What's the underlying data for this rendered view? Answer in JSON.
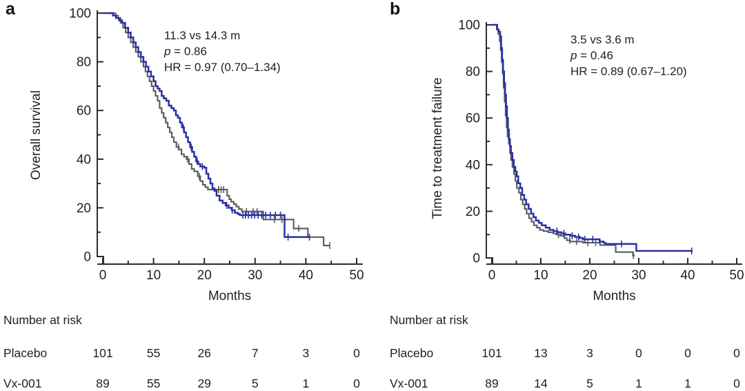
{
  "colors": {
    "axis": "#2b2b2b",
    "text": "#1f1f1f",
    "placebo_gray": "#58595b",
    "vx001_blue": "#2a2fa5"
  },
  "chart_data": [
    {
      "type": "line",
      "subtype": "kaplan-meier-step",
      "panel_letter": "a",
      "title": "",
      "xlabel": "Months",
      "ylabel": "Overall survival",
      "xlim": [
        0,
        50
      ],
      "ylim": [
        0,
        100
      ],
      "xticks": [
        0,
        10,
        20,
        30,
        40,
        50
      ],
      "x_minor_ticks": [
        5,
        15,
        25,
        35,
        45
      ],
      "yticks": [
        0,
        20,
        40,
        60,
        80,
        100
      ],
      "y_minor_ticks": [
        10,
        30,
        50,
        70,
        90
      ],
      "grid": false,
      "legend": "none",
      "annotation": {
        "median_line": "11.3 vs 14.3 m",
        "p_italic": "p",
        "p_rest": " = 0.86",
        "hr_line": "HR = 0.97 (0.70–1.34)"
      },
      "series": [
        {
          "name": "Placebo",
          "color": "#58595b",
          "stroke_width": 2.1,
          "points": [
            [
              0,
              100
            ],
            [
              2,
              100
            ],
            [
              2.5,
              99
            ],
            [
              3,
              98
            ],
            [
              3.5,
              96
            ],
            [
              4,
              94
            ],
            [
              4.5,
              92
            ],
            [
              5,
              90
            ],
            [
              5.5,
              88
            ],
            [
              6,
              86
            ],
            [
              6.5,
              84
            ],
            [
              7,
              82
            ],
            [
              7.5,
              80
            ],
            [
              8,
              78
            ],
            [
              8.4,
              76
            ],
            [
              8.8,
              74
            ],
            [
              9.2,
              72
            ],
            [
              9.6,
              70
            ],
            [
              10,
              68
            ],
            [
              10.4,
              66
            ],
            [
              10.8,
              64
            ],
            [
              11.2,
              61
            ],
            [
              11.6,
              59
            ],
            [
              12,
              57
            ],
            [
              12.4,
              55
            ],
            [
              12.8,
              53
            ],
            [
              13.2,
              51
            ],
            [
              13.6,
              49
            ],
            [
              14,
              47
            ],
            [
              14.5,
              45
            ],
            [
              15,
              44
            ],
            [
              15.5,
              42
            ],
            [
              16,
              41
            ],
            [
              16.5,
              40
            ],
            [
              17,
              38
            ],
            [
              17.5,
              36
            ],
            [
              18,
              35
            ],
            [
              18.7,
              33
            ],
            [
              19.2,
              31
            ],
            [
              19.7,
              29.5
            ],
            [
              20.2,
              28.5
            ],
            [
              20.7,
              27.5
            ],
            [
              24.2,
              27.5
            ],
            [
              24.5,
              25
            ],
            [
              24.9,
              23.5
            ],
            [
              25.3,
              22.5
            ],
            [
              25.8,
              21.5
            ],
            [
              26.3,
              20.5
            ],
            [
              26.8,
              19.5
            ],
            [
              27.4,
              18.5
            ],
            [
              31.3,
              18.5
            ],
            [
              31.6,
              15.2
            ],
            [
              37.3,
              15.2
            ],
            [
              37.6,
              11.5
            ],
            [
              40.1,
              11.5
            ],
            [
              40.4,
              8
            ],
            [
              43.2,
              8
            ],
            [
              43.5,
              4.5
            ],
            [
              44.8,
              4.5
            ]
          ],
          "censor_marks": [
            14.9,
            16.7,
            19,
            22.8,
            23.3,
            23.8,
            28.3,
            29.6,
            30.4,
            33.8,
            35.3,
            38.6,
            44.7
          ]
        },
        {
          "name": "Vx-001",
          "color": "#2a2fa5",
          "stroke_width": 2.5,
          "points": [
            [
              0,
              100
            ],
            [
              1.5,
              100
            ],
            [
              2,
              99
            ],
            [
              2.6,
              98
            ],
            [
              3.2,
              97
            ],
            [
              3.8,
              96
            ],
            [
              4.4,
              94
            ],
            [
              5,
              92
            ],
            [
              5.5,
              90
            ],
            [
              6,
              88
            ],
            [
              6.5,
              86
            ],
            [
              7,
              84
            ],
            [
              7.5,
              82
            ],
            [
              8,
              80
            ],
            [
              8.5,
              78
            ],
            [
              9,
              76
            ],
            [
              9.5,
              74
            ],
            [
              10,
              72
            ],
            [
              10.4,
              70
            ],
            [
              10.8,
              69
            ],
            [
              11.2,
              68
            ],
            [
              11.6,
              66
            ],
            [
              12,
              65
            ],
            [
              12.5,
              64
            ],
            [
              13,
              62
            ],
            [
              13.5,
              61
            ],
            [
              14,
              60
            ],
            [
              14.4,
              58
            ],
            [
              14.8,
              57
            ],
            [
              15.2,
              55
            ],
            [
              15.6,
              53
            ],
            [
              16,
              51
            ],
            [
              16.4,
              49
            ],
            [
              16.8,
              47
            ],
            [
              17.2,
              45
            ],
            [
              17.6,
              43
            ],
            [
              18,
              41
            ],
            [
              18.4,
              39
            ],
            [
              18.8,
              38
            ],
            [
              19.2,
              37
            ],
            [
              20,
              36.5
            ],
            [
              20.4,
              34
            ],
            [
              20.8,
              32
            ],
            [
              21.2,
              30
            ],
            [
              21.6,
              28
            ],
            [
              22,
              27
            ],
            [
              22.4,
              25
            ],
            [
              23,
              23
            ],
            [
              23.6,
              22
            ],
            [
              24.2,
              21
            ],
            [
              24.8,
              20
            ],
            [
              25.4,
              19
            ],
            [
              26,
              18
            ],
            [
              26.6,
              17.5
            ],
            [
              27,
              17
            ],
            [
              35.6,
              17
            ],
            [
              35.8,
              8
            ],
            [
              40.8,
              8
            ]
          ],
          "censor_marks": [
            15.9,
            17.4,
            18.6,
            19.6,
            24.4,
            25.5,
            27.6,
            28.1,
            28.7,
            29.3,
            29.9,
            30.6,
            31.3,
            32.1,
            33,
            34,
            35,
            36.5,
            40.7
          ]
        }
      ],
      "number_at_risk": {
        "title": "Number at risk",
        "time_points": [
          0,
          10,
          20,
          30,
          40,
          50
        ],
        "rows": [
          {
            "label": "Placebo",
            "values": [
              101,
              55,
              26,
              7,
              3,
              0
            ]
          },
          {
            "label": "Vx-001",
            "values": [
              89,
              55,
              29,
              5,
              1,
              0
            ]
          }
        ]
      }
    },
    {
      "type": "line",
      "subtype": "kaplan-meier-step",
      "panel_letter": "b",
      "title": "",
      "xlabel": "Months",
      "ylabel": "Time to treatment failure",
      "xlim": [
        0,
        50
      ],
      "ylim": [
        0,
        100
      ],
      "xticks": [
        0,
        10,
        20,
        30,
        40,
        50
      ],
      "x_minor_ticks": [
        5,
        15,
        25,
        35,
        45
      ],
      "yticks": [
        0,
        20,
        40,
        60,
        80,
        100
      ],
      "y_minor_ticks": [
        10,
        30,
        50,
        70,
        90
      ],
      "grid": false,
      "legend": "none",
      "annotation": {
        "median_line": "3.5 vs 3.6 m",
        "p_italic": "p",
        "p_rest": " = 0.46",
        "hr_line": "HR = 0.89 (0.67–1.20)"
      },
      "series": [
        {
          "name": "Placebo",
          "color": "#58595b",
          "stroke_width": 2.1,
          "points": [
            [
              0,
              100
            ],
            [
              0.8,
              100
            ],
            [
              1,
              98
            ],
            [
              1.3,
              96
            ],
            [
              1.6,
              93
            ],
            [
              1.8,
              89
            ],
            [
              2,
              84
            ],
            [
              2.2,
              79
            ],
            [
              2.4,
              73
            ],
            [
              2.6,
              67
            ],
            [
              2.8,
              61
            ],
            [
              3,
              56
            ],
            [
              3.2,
              52
            ],
            [
              3.45,
              49
            ],
            [
              3.7,
              45
            ],
            [
              3.9,
              42
            ],
            [
              4.2,
              39
            ],
            [
              4.5,
              36
            ],
            [
              4.8,
              33
            ],
            [
              5.1,
              30
            ],
            [
              5.5,
              28
            ],
            [
              5.9,
              25
            ],
            [
              6.3,
              23
            ],
            [
              6.7,
              21
            ],
            [
              7.1,
              19
            ],
            [
              7.6,
              17
            ],
            [
              8.1,
              15.5
            ],
            [
              8.6,
              14
            ],
            [
              9.2,
              13
            ],
            [
              9.8,
              12
            ],
            [
              10.5,
              11.5
            ],
            [
              11.5,
              11
            ],
            [
              12.5,
              10.5
            ],
            [
              13.2,
              10
            ],
            [
              14,
              9.5
            ],
            [
              14.8,
              8.5
            ],
            [
              15.3,
              7.5
            ],
            [
              16,
              7
            ],
            [
              18.3,
              7
            ],
            [
              18.6,
              6.5
            ],
            [
              21.8,
              6.5
            ],
            [
              22.1,
              5.5
            ],
            [
              25,
              5.5
            ],
            [
              25.3,
              2.5
            ],
            [
              28.6,
              2.5
            ],
            [
              28.8,
              1
            ],
            [
              29.2,
              1
            ]
          ],
          "censor_marks": [
            13.6,
            15.9,
            17.3,
            19.6,
            21.2,
            28.9
          ]
        },
        {
          "name": "Vx-001",
          "color": "#2a2fa5",
          "stroke_width": 2.5,
          "points": [
            [
              0,
              100
            ],
            [
              0.9,
              100
            ],
            [
              1.1,
              98
            ],
            [
              1.4,
              97
            ],
            [
              1.7,
              95
            ],
            [
              1.9,
              90
            ],
            [
              2.1,
              85
            ],
            [
              2.3,
              80
            ],
            [
              2.5,
              75
            ],
            [
              2.7,
              70
            ],
            [
              2.9,
              65
            ],
            [
              3.1,
              60
            ],
            [
              3.3,
              55
            ],
            [
              3.5,
              51
            ],
            [
              3.7,
              48
            ],
            [
              3.9,
              45
            ],
            [
              4.2,
              42
            ],
            [
              4.5,
              39
            ],
            [
              4.8,
              37
            ],
            [
              5.1,
              35
            ],
            [
              5.4,
              32
            ],
            [
              5.8,
              30
            ],
            [
              6.2,
              27
            ],
            [
              6.6,
              25
            ],
            [
              7,
              23
            ],
            [
              7.5,
              21
            ],
            [
              8,
              19
            ],
            [
              8.5,
              17.5
            ],
            [
              9,
              16
            ],
            [
              9.6,
              15
            ],
            [
              10.2,
              14
            ],
            [
              11,
              13
            ],
            [
              11.8,
              12
            ],
            [
              12.6,
              11.5
            ],
            [
              13.4,
              11
            ],
            [
              14.2,
              10.5
            ],
            [
              15,
              10
            ],
            [
              16,
              9.5
            ],
            [
              17,
              9
            ],
            [
              18,
              8.5
            ],
            [
              18.6,
              8
            ],
            [
              21.5,
              8
            ],
            [
              22,
              7
            ],
            [
              22.8,
              6.5
            ],
            [
              23.2,
              6
            ],
            [
              29.3,
              6
            ],
            [
              29.5,
              3
            ],
            [
              41,
              3
            ]
          ],
          "censor_marks": [
            13.3,
            14.7,
            16.4,
            17.7,
            19,
            20.6,
            26.5,
            40.8
          ]
        }
      ],
      "number_at_risk": {
        "title": "Number at risk",
        "time_points": [
          0,
          10,
          20,
          30,
          40,
          50
        ],
        "rows": [
          {
            "label": "Placebo",
            "values": [
              101,
              13,
              3,
              0,
              0,
              0
            ]
          },
          {
            "label": "Vx-001",
            "values": [
              89,
              14,
              5,
              1,
              1,
              0
            ]
          }
        ]
      }
    }
  ]
}
